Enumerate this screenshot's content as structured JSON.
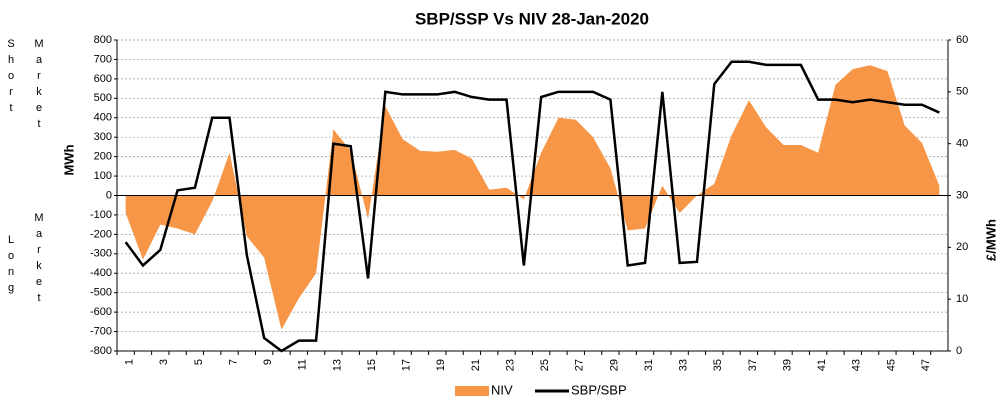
{
  "chart_data": {
    "type": "area_line",
    "title": "SBP/SSP Vs NIV 28-Jan-2020",
    "ylabel": "MWh",
    "y2label": "£/MWh",
    "annotations": [
      "Short",
      "Market",
      "Long",
      "Market"
    ],
    "categories": [
      "1",
      null,
      "3",
      null,
      "5",
      null,
      "7",
      null,
      "9",
      null,
      "11",
      null,
      "13",
      null,
      "15",
      null,
      "17",
      null,
      "19",
      null,
      "21",
      null,
      "23",
      null,
      "25",
      null,
      "27",
      null,
      "29",
      null,
      "31",
      null,
      "33",
      null,
      "35",
      null,
      "37",
      null,
      "39",
      null,
      "41",
      null,
      "43",
      null,
      "45",
      null,
      "47",
      null
    ],
    "series": [
      {
        "name": "NIV",
        "color": "#f79646",
        "kind": "area",
        "values": [
          -90,
          -330,
          -150,
          -170,
          -200,
          -30,
          220,
          -210,
          -320,
          -690,
          -530,
          -400,
          340,
          230,
          -120,
          460,
          290,
          230,
          225,
          235,
          190,
          30,
          40,
          -20,
          220,
          400,
          390,
          300,
          140,
          -180,
          -170,
          50,
          -90,
          0,
          60,
          310,
          490,
          350,
          260,
          260,
          220,
          570,
          650,
          670,
          640,
          360,
          270,
          50
        ]
      },
      {
        "name": "SBP/SBP",
        "color": "#000000",
        "kind": "line",
        "axis": "y2",
        "values": [
          21,
          16.5,
          19.5,
          31,
          31.5,
          45,
          45,
          18.5,
          2.5,
          0,
          2,
          2,
          40,
          39.5,
          14,
          50,
          49.5,
          49.5,
          49.5,
          50,
          49,
          48.5,
          48.5,
          16.5,
          49,
          50,
          50,
          50,
          48.5,
          16.5,
          17,
          50,
          17,
          17.2,
          51.5,
          55.8,
          55.8,
          55.2,
          55.2,
          55.2,
          48.5,
          48.5,
          48,
          48.5,
          48,
          47.5,
          47.5,
          46
        ]
      }
    ],
    "ylim": [
      -800,
      800
    ],
    "yticks": [
      -800,
      -700,
      -600,
      -500,
      -400,
      -300,
      -200,
      -100,
      0,
      100,
      200,
      300,
      400,
      500,
      600,
      700,
      800
    ],
    "y2lim": [
      0,
      60
    ],
    "y2ticks": [
      0,
      10,
      20,
      30,
      40,
      50,
      60
    ],
    "grid": true,
    "legend": "bottom"
  }
}
